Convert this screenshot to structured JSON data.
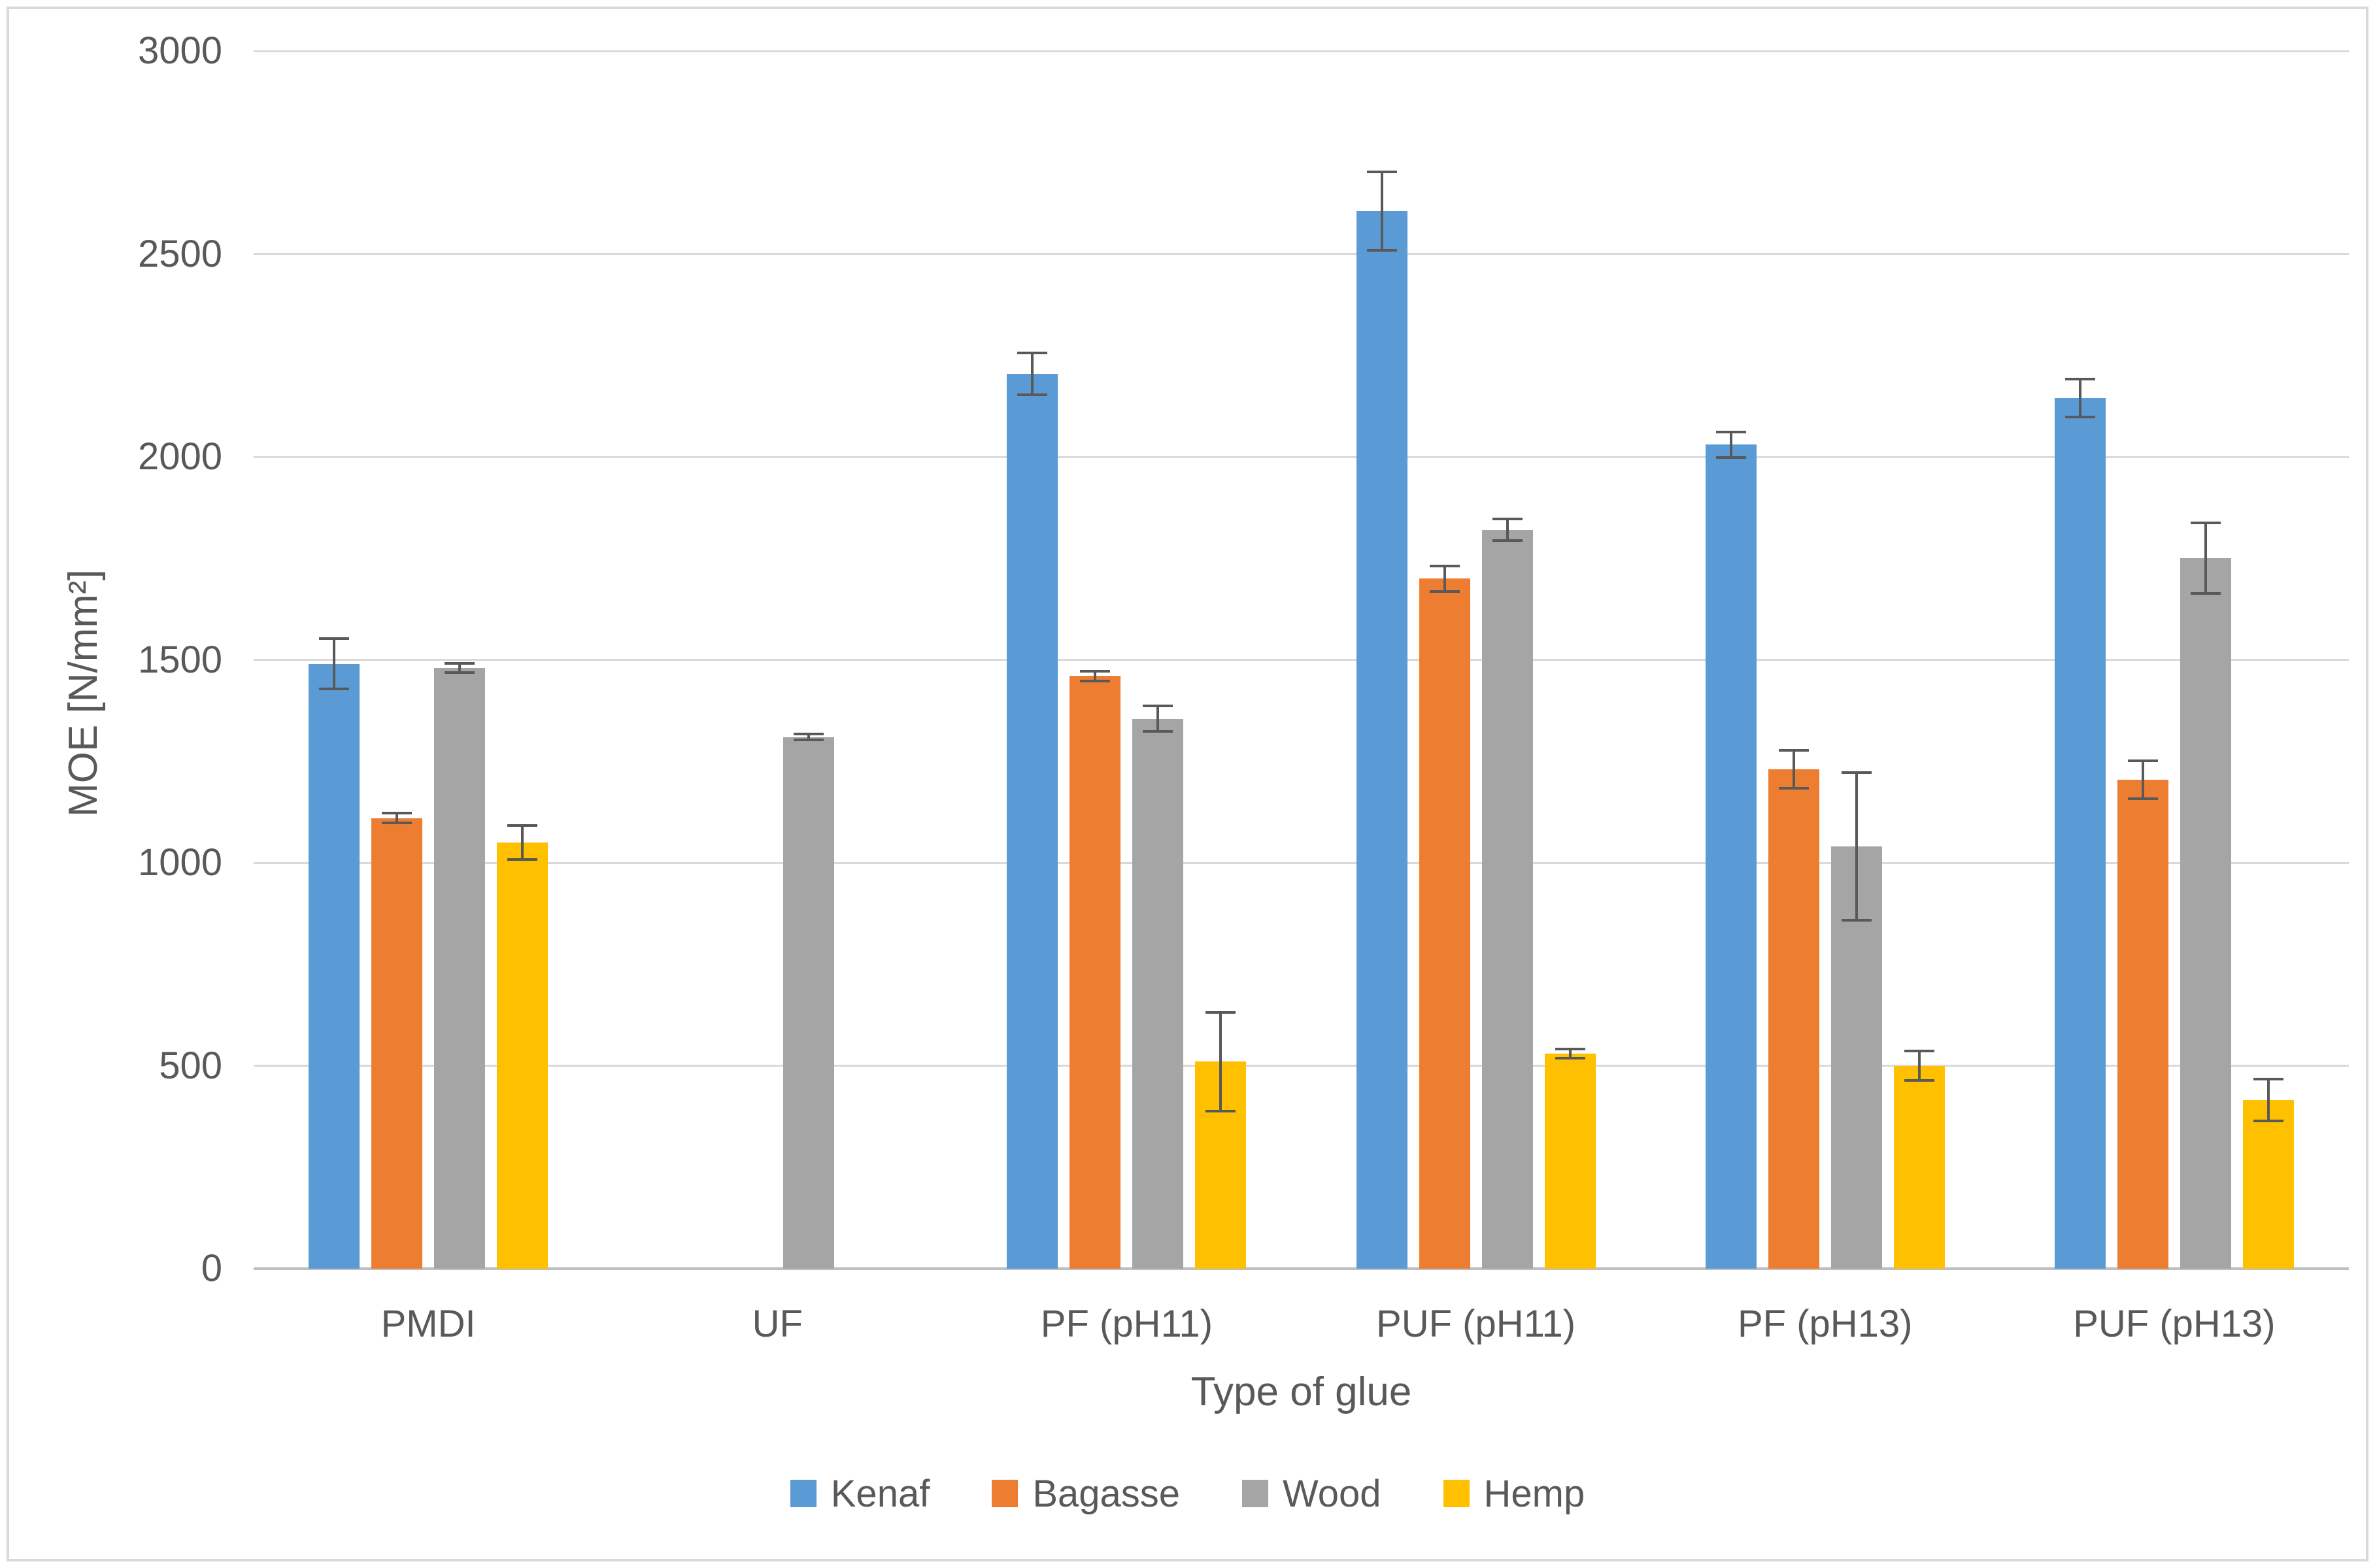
{
  "figure": {
    "background": "#ffffff",
    "frame_border_color": "#d9d9d9"
  },
  "y_axis": {
    "title": "MOE [N/mm²]",
    "tick_labels": [
      "0",
      "500",
      "1000",
      "1500",
      "2000",
      "2500",
      "3000"
    ]
  },
  "x_axis": {
    "title": "Type of glue",
    "categories": [
      "PMDI",
      "UF",
      "PF (pH11)",
      "PUF (pH11)",
      "PF (pH13)",
      "PUF (pH13)"
    ]
  },
  "legend": {
    "items": [
      "Kenaf",
      "Bagasse",
      "Wood",
      "Hemp"
    ]
  },
  "chart_data": {
    "type": "bar",
    "title": "",
    "xlabel": "Type of glue",
    "ylabel": "MOE [N/mm²]",
    "ylim": [
      0,
      3000
    ],
    "ytick_step": 500,
    "grid": true,
    "legend_position": "bottom",
    "categories": [
      "PMDI",
      "UF",
      "PF (pH11)",
      "PUF (pH11)",
      "PF (pH13)",
      "PUF (pH13)"
    ],
    "series": [
      {
        "name": "Kenaf",
        "color": "#5B9BD5",
        "values": [
          1490,
          null,
          2205,
          2605,
          2030,
          2145
        ],
        "errors": [
          65,
          null,
          55,
          100,
          35,
          50
        ]
      },
      {
        "name": "Bagasse",
        "color": "#ED7D31",
        "values": [
          1110,
          null,
          1460,
          1700,
          1230,
          1205
        ],
        "errors": [
          15,
          null,
          15,
          35,
          50,
          50
        ]
      },
      {
        "name": "Wood",
        "color": "#A5A5A5",
        "values": [
          1480,
          1310,
          1355,
          1820,
          1040,
          1750
        ],
        "errors": [
          15,
          10,
          35,
          30,
          185,
          90
        ]
      },
      {
        "name": "Hemp",
        "color": "#FFC000",
        "values": [
          1050,
          null,
          510,
          530,
          500,
          415
        ],
        "errors": [
          45,
          null,
          125,
          15,
          40,
          55
        ]
      }
    ],
    "colors": {
      "gridline": "#d9d9d9",
      "axis_line": "#bfbfbf",
      "error_bar": "#595959",
      "text": "#595959"
    }
  }
}
